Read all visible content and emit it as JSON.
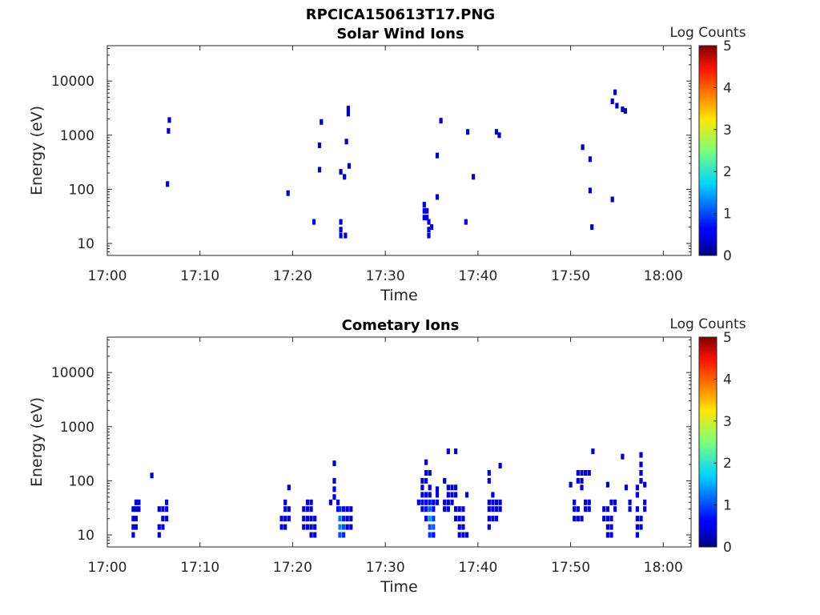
{
  "figure_title": "RPCICA150613T17.PNG",
  "chart_data": [
    {
      "type": "heatmap",
      "title": "Solar Wind Ions",
      "xlabel": "Time",
      "ylabel": "Energy (eV)",
      "yscale": "log",
      "xlim": [
        "17:00",
        "18:03"
      ],
      "ylim": [
        6,
        45000
      ],
      "xticks": [
        "17:00",
        "17:10",
        "17:20",
        "17:30",
        "17:40",
        "17:50",
        "18:00"
      ],
      "yticks": [
        10,
        100,
        1000,
        10000
      ],
      "ytick_labels": [
        "10",
        "100",
        "1000",
        "10000"
      ],
      "colorbar": {
        "label": "Log Counts",
        "min": 0,
        "max": 5,
        "ticks": [
          "0",
          "1",
          "2",
          "3",
          "4",
          "5"
        ]
      },
      "cells": [
        [
          "17:06.5",
          125,
          0.3
        ],
        [
          "17:06.6",
          1200,
          0.3
        ],
        [
          "17:06.7",
          1900,
          0.3
        ],
        [
          "17:19.5",
          85,
          0.3
        ],
        [
          "17:22.3",
          25,
          0.4
        ],
        [
          "17:22.9",
          230,
          0.3
        ],
        [
          "17:22.9",
          650,
          0.3
        ],
        [
          "17:23.1",
          1750,
          0.3
        ],
        [
          "17:25.2",
          210,
          0.3
        ],
        [
          "17:25.6",
          170,
          0.3
        ],
        [
          "17:25.8",
          760,
          0.3
        ],
        [
          "17:26.0",
          2500,
          0.3
        ],
        [
          "17:26.0",
          3100,
          0.3
        ],
        [
          "17:26.1",
          270,
          0.3
        ],
        [
          "17:25.2",
          14,
          0.4
        ],
        [
          "17:25.2",
          18,
          0.4
        ],
        [
          "17:25.2",
          25,
          0.4
        ],
        [
          "17:25.7",
          14,
          0.4
        ],
        [
          "17:34.2",
          30,
          0.4
        ],
        [
          "17:34.2",
          40,
          0.4
        ],
        [
          "17:34.2",
          52,
          0.4
        ],
        [
          "17:34.5",
          30,
          0.4
        ],
        [
          "17:34.5",
          40,
          0.4
        ],
        [
          "17:34.7",
          14,
          0.4
        ],
        [
          "17:34.7",
          18,
          0.4
        ],
        [
          "17:34.7",
          25,
          0.4
        ],
        [
          "17:35.0",
          20,
          0.4
        ],
        [
          "17:35.6",
          72,
          0.3
        ],
        [
          "17:35.6",
          420,
          0.3
        ],
        [
          "17:36.0",
          1850,
          0.3
        ],
        [
          "17:38.7",
          25,
          0.4
        ],
        [
          "17:38.9",
          1150,
          0.3
        ],
        [
          "17:39.5",
          170,
          0.3
        ],
        [
          "17:42.0",
          1150,
          0.3
        ],
        [
          "17:42.3",
          1000,
          0.3
        ],
        [
          "17:51.3",
          600,
          0.3
        ],
        [
          "17:52.1",
          95,
          0.3
        ],
        [
          "17:52.1",
          360,
          0.3
        ],
        [
          "17:52.3",
          20,
          0.4
        ],
        [
          "17:54.5",
          65,
          0.3
        ],
        [
          "17:54.5",
          4200,
          0.3
        ],
        [
          "17:54.8",
          6200,
          0.3
        ],
        [
          "17:55.0",
          3500,
          0.3
        ],
        [
          "17:55.6",
          3000,
          0.3
        ],
        [
          "17:55.9",
          2800,
          0.3
        ]
      ]
    },
    {
      "type": "heatmap",
      "title": "Cometary Ions",
      "xlabel": "Time",
      "ylabel": "Energy (eV)",
      "yscale": "log",
      "xlim": [
        "17:00",
        "18:03"
      ],
      "ylim": [
        6,
        45000
      ],
      "xticks": [
        "17:00",
        "17:10",
        "17:20",
        "17:30",
        "17:40",
        "17:50",
        "18:00"
      ],
      "yticks": [
        10,
        100,
        1000,
        10000
      ],
      "ytick_labels": [
        "10",
        "100",
        "1000",
        "10000"
      ],
      "colorbar": {
        "label": "Log Counts",
        "min": 0,
        "max": 5,
        "ticks": [
          "0",
          "1",
          "2",
          "3",
          "4",
          "5"
        ]
      },
      "cells": [
        [
          "17:02.8",
          10,
          0.4
        ],
        [
          "17:02.8",
          14,
          0.4
        ],
        [
          "17:02.8",
          20,
          0.4
        ],
        [
          "17:02.8",
          30,
          0.4
        ],
        [
          "17:03.1",
          14,
          0.4
        ],
        [
          "17:03.1",
          20,
          0.4
        ],
        [
          "17:03.1",
          30,
          0.4
        ],
        [
          "17:03.1",
          40,
          0.4
        ],
        [
          "17:03.4",
          30,
          0.4
        ],
        [
          "17:03.4",
          40,
          0.4
        ],
        [
          "17:04.8",
          125,
          0.3
        ],
        [
          "17:05.6",
          10,
          0.4
        ],
        [
          "17:05.6",
          14,
          0.4
        ],
        [
          "17:05.6",
          30,
          0.4
        ],
        [
          "17:06.0",
          14,
          0.4
        ],
        [
          "17:06.0",
          20,
          0.4
        ],
        [
          "17:06.0",
          30,
          0.4
        ],
        [
          "17:06.4",
          20,
          0.4
        ],
        [
          "17:06.4",
          30,
          0.4
        ],
        [
          "17:06.4",
          40,
          0.4
        ],
        [
          "17:18.8",
          14,
          0.4
        ],
        [
          "17:18.8",
          20,
          0.4
        ],
        [
          "17:19.2",
          14,
          0.4
        ],
        [
          "17:19.2",
          20,
          0.4
        ],
        [
          "17:19.2",
          30,
          0.4
        ],
        [
          "17:19.2",
          40,
          0.4
        ],
        [
          "17:19.6",
          20,
          0.4
        ],
        [
          "17:19.6",
          30,
          0.4
        ],
        [
          "17:19.6",
          75,
          0.3
        ],
        [
          "17:21.2",
          14,
          0.4
        ],
        [
          "17:21.2",
          20,
          0.4
        ],
        [
          "17:21.2",
          30,
          0.4
        ],
        [
          "17:21.6",
          14,
          0.4
        ],
        [
          "17:21.6",
          20,
          0.4
        ],
        [
          "17:21.6",
          30,
          0.4
        ],
        [
          "17:21.6",
          40,
          0.4
        ],
        [
          "17:22.0",
          10,
          0.4
        ],
        [
          "17:22.0",
          14,
          0.4
        ],
        [
          "17:22.0",
          20,
          0.4
        ],
        [
          "17:22.0",
          30,
          0.4
        ],
        [
          "17:22.0",
          40,
          0.4
        ],
        [
          "17:22.4",
          10,
          0.4
        ],
        [
          "17:22.4",
          14,
          0.4
        ],
        [
          "17:22.4",
          20,
          0.4
        ],
        [
          "17:24.1",
          40,
          0.4
        ],
        [
          "17:24.5",
          50,
          0.4
        ],
        [
          "17:24.5",
          70,
          0.4
        ],
        [
          "17:24.5",
          100,
          0.4
        ],
        [
          "17:24.5",
          210,
          0.3
        ],
        [
          "17:24.9",
          30,
          0.4
        ],
        [
          "17:24.9",
          40,
          0.4
        ],
        [
          "17:25.1",
          10,
          1.0
        ],
        [
          "17:25.1",
          14,
          1.3
        ],
        [
          "17:25.1",
          20,
          1.2
        ],
        [
          "17:25.1",
          30,
          0.8
        ],
        [
          "17:25.5",
          10,
          0.8
        ],
        [
          "17:25.5",
          14,
          1.0
        ],
        [
          "17:25.5",
          20,
          0.7
        ],
        [
          "17:25.5",
          30,
          0.5
        ],
        [
          "17:25.9",
          14,
          0.4
        ],
        [
          "17:25.9",
          20,
          0.4
        ],
        [
          "17:25.9",
          30,
          0.4
        ],
        [
          "17:26.3",
          14,
          0.4
        ],
        [
          "17:26.3",
          20,
          0.4
        ],
        [
          "17:26.3",
          30,
          0.4
        ],
        [
          "17:33.6",
          40,
          0.4
        ],
        [
          "17:34.0",
          30,
          0.4
        ],
        [
          "17:34.0",
          40,
          0.5
        ],
        [
          "17:34.0",
          55,
          0.4
        ],
        [
          "17:34.0",
          75,
          0.4
        ],
        [
          "17:34.0",
          100,
          0.4
        ],
        [
          "17:34.4",
          20,
          0.5
        ],
        [
          "17:34.4",
          30,
          0.7
        ],
        [
          "17:34.4",
          40,
          0.6
        ],
        [
          "17:34.4",
          55,
          0.5
        ],
        [
          "17:34.4",
          100,
          0.4
        ],
        [
          "17:34.4",
          140,
          0.4
        ],
        [
          "17:34.4",
          220,
          0.4
        ],
        [
          "17:34.8",
          10,
          0.9
        ],
        [
          "17:34.8",
          14,
          1.0
        ],
        [
          "17:34.8",
          20,
          1.4
        ],
        [
          "17:34.8",
          30,
          1.1
        ],
        [
          "17:34.8",
          40,
          0.7
        ],
        [
          "17:34.8",
          55,
          0.5
        ],
        [
          "17:34.8",
          75,
          0.4
        ],
        [
          "17:34.8",
          140,
          0.4
        ],
        [
          "17:35.2",
          10,
          0.7
        ],
        [
          "17:35.2",
          14,
          1.1
        ],
        [
          "17:35.2",
          20,
          0.9
        ],
        [
          "17:35.2",
          30,
          0.6
        ],
        [
          "17:35.2",
          40,
          0.4
        ],
        [
          "17:35.6",
          40,
          0.4
        ],
        [
          "17:35.6",
          55,
          0.4
        ],
        [
          "17:35.6",
          70,
          0.4
        ],
        [
          "17:36.4",
          30,
          0.4
        ],
        [
          "17:36.4",
          40,
          0.4
        ],
        [
          "17:36.4",
          100,
          0.4
        ],
        [
          "17:36.8",
          30,
          0.4
        ],
        [
          "17:36.8",
          40,
          0.4
        ],
        [
          "17:36.8",
          55,
          0.4
        ],
        [
          "17:36.8",
          75,
          0.4
        ],
        [
          "17:36.8",
          350,
          0.3
        ],
        [
          "17:37.2",
          40,
          0.4
        ],
        [
          "17:37.2",
          55,
          0.4
        ],
        [
          "17:37.2",
          75,
          0.4
        ],
        [
          "17:37.6",
          20,
          0.4
        ],
        [
          "17:37.6",
          30,
          0.4
        ],
        [
          "17:37.6",
          55,
          0.4
        ],
        [
          "17:37.6",
          75,
          0.4
        ],
        [
          "17:37.6",
          350,
          0.3
        ],
        [
          "17:38.0",
          10,
          0.4
        ],
        [
          "17:38.0",
          14,
          0.4
        ],
        [
          "17:38.0",
          20,
          0.4
        ],
        [
          "17:38.0",
          30,
          0.4
        ],
        [
          "17:38.4",
          10,
          0.4
        ],
        [
          "17:38.4",
          14,
          0.4
        ],
        [
          "17:38.4",
          20,
          0.4
        ],
        [
          "17:38.4",
          30,
          0.4
        ],
        [
          "17:38.8",
          10,
          0.4
        ],
        [
          "17:38.8",
          55,
          0.4
        ],
        [
          "17:41.2",
          14,
          0.4
        ],
        [
          "17:41.2",
          20,
          0.4
        ],
        [
          "17:41.2",
          30,
          0.4
        ],
        [
          "17:41.2",
          40,
          0.4
        ],
        [
          "17:41.2",
          100,
          0.4
        ],
        [
          "17:41.2",
          140,
          0.4
        ],
        [
          "17:41.6",
          20,
          0.4
        ],
        [
          "17:41.6",
          30,
          0.4
        ],
        [
          "17:41.6",
          40,
          0.4
        ],
        [
          "17:41.6",
          55,
          0.4
        ],
        [
          "17:42.0",
          20,
          0.4
        ],
        [
          "17:42.0",
          30,
          0.4
        ],
        [
          "17:42.0",
          40,
          0.4
        ],
        [
          "17:42.4",
          30,
          0.4
        ],
        [
          "17:42.4",
          40,
          0.4
        ],
        [
          "17:42.4",
          190,
          0.3
        ],
        [
          "17:50.0",
          85,
          0.4
        ],
        [
          "17:50.4",
          20,
          0.4
        ],
        [
          "17:50.4",
          30,
          0.4
        ],
        [
          "17:50.4",
          40,
          0.4
        ],
        [
          "17:50.8",
          20,
          0.4
        ],
        [
          "17:50.8",
          30,
          0.4
        ],
        [
          "17:50.8",
          100,
          0.4
        ],
        [
          "17:50.8",
          140,
          0.4
        ],
        [
          "17:51.2",
          20,
          0.4
        ],
        [
          "17:51.2",
          75,
          0.4
        ],
        [
          "17:51.2",
          100,
          0.4
        ],
        [
          "17:51.2",
          140,
          0.4
        ],
        [
          "17:51.6",
          30,
          0.4
        ],
        [
          "17:51.6",
          40,
          0.4
        ],
        [
          "17:51.6",
          140,
          0.4
        ],
        [
          "17:52.0",
          30,
          0.4
        ],
        [
          "17:52.0",
          40,
          0.4
        ],
        [
          "17:52.0",
          140,
          0.4
        ],
        [
          "17:52.4",
          350,
          0.3
        ],
        [
          "17:53.6",
          20,
          0.4
        ],
        [
          "17:53.6",
          30,
          0.4
        ],
        [
          "17:54.0",
          10,
          0.4
        ],
        [
          "17:54.0",
          14,
          0.4
        ],
        [
          "17:54.0",
          20,
          0.4
        ],
        [
          "17:54.0",
          30,
          0.4
        ],
        [
          "17:54.0",
          85,
          0.3
        ],
        [
          "17:54.4",
          10,
          0.4
        ],
        [
          "17:54.4",
          14,
          0.4
        ],
        [
          "17:54.4",
          20,
          0.4
        ],
        [
          "17:54.4",
          40,
          0.4
        ],
        [
          "17:54.8",
          30,
          0.4
        ],
        [
          "17:54.8",
          40,
          0.4
        ],
        [
          "17:55.6",
          280,
          0.3
        ],
        [
          "17:56.0",
          75,
          0.3
        ],
        [
          "17:56.4",
          30,
          0.4
        ],
        [
          "17:56.4",
          40,
          0.4
        ],
        [
          "17:57.2",
          10,
          0.4
        ],
        [
          "17:57.2",
          14,
          0.4
        ],
        [
          "17:57.2",
          20,
          0.4
        ],
        [
          "17:57.2",
          30,
          0.4
        ],
        [
          "17:57.2",
          55,
          0.4
        ],
        [
          "17:57.2",
          75,
          0.4
        ],
        [
          "17:57.6",
          14,
          0.4
        ],
        [
          "17:57.6",
          20,
          0.4
        ],
        [
          "17:57.6",
          100,
          0.4
        ],
        [
          "17:57.6",
          140,
          0.4
        ],
        [
          "17:57.6",
          200,
          0.4
        ],
        [
          "17:57.6",
          300,
          0.3
        ],
        [
          "17:58.0",
          30,
          0.4
        ],
        [
          "17:58.0",
          40,
          0.4
        ],
        [
          "17:58.0",
          85,
          0.3
        ]
      ]
    }
  ]
}
